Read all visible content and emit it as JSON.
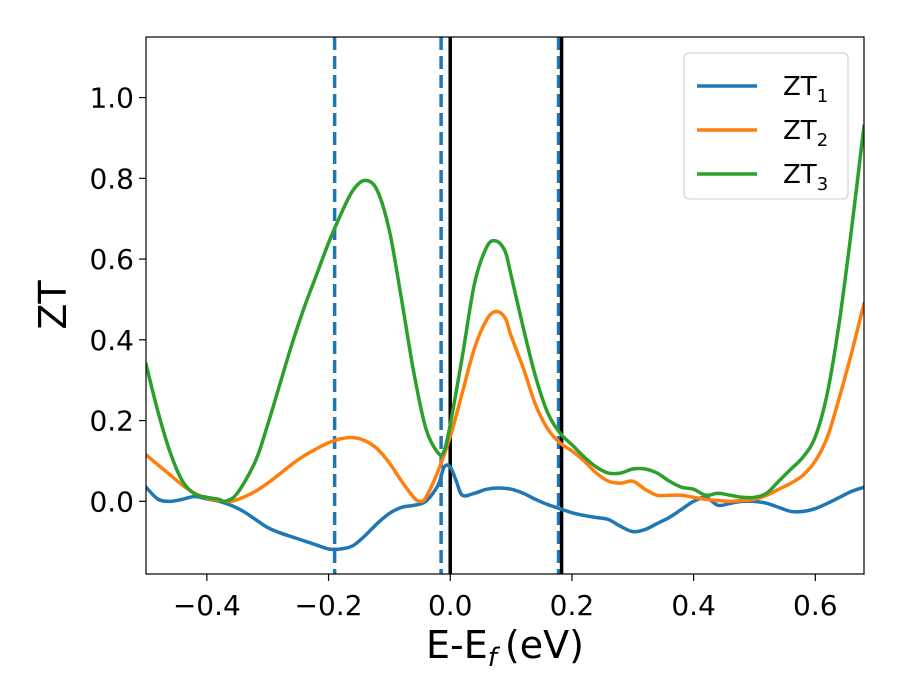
{
  "chart_data": {
    "type": "line",
    "xlabel": "E-E",
    "xlabel_sub": "f",
    "xlabel_unit": "(eV)",
    "ylabel": "ZT",
    "xlim": [
      -0.5,
      0.68
    ],
    "ylim": [
      -0.18,
      1.15
    ],
    "xticks": [
      -0.4,
      -0.2,
      0.0,
      0.2,
      0.4,
      0.6
    ],
    "xtick_labels": [
      "−0.4",
      "−0.2",
      "0.0",
      "0.2",
      "0.4",
      "0.6"
    ],
    "yticks": [
      0.0,
      0.2,
      0.4,
      0.6,
      0.8,
      1.0
    ],
    "ytick_labels": [
      "0.0",
      "0.2",
      "0.4",
      "0.6",
      "0.8",
      "1.0"
    ],
    "legend_position": "top-right",
    "grid": false,
    "vlines": [
      {
        "x": -0.19,
        "style": "dashed",
        "color": "#1f77b4"
      },
      {
        "x": -0.015,
        "style": "dashed",
        "color": "#1f77b4"
      },
      {
        "x": 0.178,
        "style": "dashed",
        "color": "#1f77b4"
      },
      {
        "x": 0.0,
        "style": "solid",
        "color": "#000000"
      },
      {
        "x": 0.183,
        "style": "solid",
        "color": "#000000"
      }
    ],
    "series": [
      {
        "name": "ZT",
        "sub": "1",
        "color": "#1f77b4",
        "points": [
          [
            -0.5,
            0.035
          ],
          [
            -0.48,
            0.005
          ],
          [
            -0.46,
            0.0
          ],
          [
            -0.44,
            0.005
          ],
          [
            -0.42,
            0.012
          ],
          [
            -0.4,
            0.006
          ],
          [
            -0.38,
            0.0
          ],
          [
            -0.36,
            -0.01
          ],
          [
            -0.34,
            -0.025
          ],
          [
            -0.32,
            -0.045
          ],
          [
            -0.3,
            -0.065
          ],
          [
            -0.28,
            -0.078
          ],
          [
            -0.26,
            -0.088
          ],
          [
            -0.24,
            -0.098
          ],
          [
            -0.22,
            -0.108
          ],
          [
            -0.2,
            -0.118
          ],
          [
            -0.18,
            -0.118
          ],
          [
            -0.16,
            -0.11
          ],
          [
            -0.14,
            -0.085
          ],
          [
            -0.12,
            -0.055
          ],
          [
            -0.1,
            -0.03
          ],
          [
            -0.08,
            -0.015
          ],
          [
            -0.06,
            -0.01
          ],
          [
            -0.04,
            0.0
          ],
          [
            -0.02,
            0.04
          ],
          [
            -0.01,
            0.085
          ],
          [
            0.0,
            0.085
          ],
          [
            0.01,
            0.05
          ],
          [
            0.02,
            0.015
          ],
          [
            0.04,
            0.02
          ],
          [
            0.06,
            0.03
          ],
          [
            0.08,
            0.033
          ],
          [
            0.1,
            0.03
          ],
          [
            0.12,
            0.02
          ],
          [
            0.14,
            0.005
          ],
          [
            0.16,
            -0.008
          ],
          [
            0.18,
            -0.018
          ],
          [
            0.2,
            -0.028
          ],
          [
            0.22,
            -0.035
          ],
          [
            0.24,
            -0.04
          ],
          [
            0.26,
            -0.045
          ],
          [
            0.28,
            -0.062
          ],
          [
            0.3,
            -0.075
          ],
          [
            0.32,
            -0.07
          ],
          [
            0.34,
            -0.055
          ],
          [
            0.36,
            -0.04
          ],
          [
            0.38,
            -0.02
          ],
          [
            0.4,
            0.0
          ],
          [
            0.42,
            0.01
          ],
          [
            0.44,
            -0.01
          ],
          [
            0.46,
            -0.005
          ],
          [
            0.48,
            0.0
          ],
          [
            0.5,
            0.0
          ],
          [
            0.52,
            -0.005
          ],
          [
            0.54,
            -0.015
          ],
          [
            0.56,
            -0.025
          ],
          [
            0.58,
            -0.025
          ],
          [
            0.6,
            -0.018
          ],
          [
            0.62,
            -0.005
          ],
          [
            0.64,
            0.01
          ],
          [
            0.66,
            0.025
          ],
          [
            0.68,
            0.035
          ]
        ]
      },
      {
        "name": "ZT",
        "sub": "2",
        "color": "#ff7f0e",
        "points": [
          [
            -0.5,
            0.115
          ],
          [
            -0.48,
            0.09
          ],
          [
            -0.46,
            0.065
          ],
          [
            -0.44,
            0.04
          ],
          [
            -0.42,
            0.02
          ],
          [
            -0.4,
            0.008
          ],
          [
            -0.38,
            0.002
          ],
          [
            -0.36,
            0.0
          ],
          [
            -0.34,
            0.01
          ],
          [
            -0.32,
            0.025
          ],
          [
            -0.3,
            0.045
          ],
          [
            -0.28,
            0.068
          ],
          [
            -0.26,
            0.092
          ],
          [
            -0.24,
            0.113
          ],
          [
            -0.22,
            0.13
          ],
          [
            -0.2,
            0.145
          ],
          [
            -0.18,
            0.155
          ],
          [
            -0.16,
            0.158
          ],
          [
            -0.14,
            0.15
          ],
          [
            -0.12,
            0.13
          ],
          [
            -0.1,
            0.095
          ],
          [
            -0.08,
            0.05
          ],
          [
            -0.06,
            0.01
          ],
          [
            -0.05,
            0.0
          ],
          [
            -0.04,
            0.01
          ],
          [
            -0.02,
            0.075
          ],
          [
            0.0,
            0.16
          ],
          [
            0.02,
            0.27
          ],
          [
            0.04,
            0.38
          ],
          [
            0.06,
            0.45
          ],
          [
            0.075,
            0.47
          ],
          [
            0.09,
            0.455
          ],
          [
            0.1,
            0.41
          ],
          [
            0.12,
            0.33
          ],
          [
            0.14,
            0.24
          ],
          [
            0.16,
            0.18
          ],
          [
            0.18,
            0.145
          ],
          [
            0.2,
            0.125
          ],
          [
            0.22,
            0.1
          ],
          [
            0.24,
            0.07
          ],
          [
            0.26,
            0.05
          ],
          [
            0.28,
            0.045
          ],
          [
            0.3,
            0.05
          ],
          [
            0.32,
            0.03
          ],
          [
            0.34,
            0.015
          ],
          [
            0.36,
            0.015
          ],
          [
            0.38,
            0.015
          ],
          [
            0.4,
            0.01
          ],
          [
            0.42,
            0.005
          ],
          [
            0.44,
            0.002
          ],
          [
            0.46,
            0.0
          ],
          [
            0.48,
            0.002
          ],
          [
            0.5,
            0.005
          ],
          [
            0.52,
            0.015
          ],
          [
            0.54,
            0.03
          ],
          [
            0.56,
            0.045
          ],
          [
            0.58,
            0.065
          ],
          [
            0.6,
            0.1
          ],
          [
            0.62,
            0.16
          ],
          [
            0.64,
            0.26
          ],
          [
            0.66,
            0.37
          ],
          [
            0.68,
            0.49
          ]
        ]
      },
      {
        "name": "ZT",
        "sub": "3",
        "color": "#2ca02c",
        "points": [
          [
            -0.5,
            0.34
          ],
          [
            -0.48,
            0.22
          ],
          [
            -0.46,
            0.12
          ],
          [
            -0.44,
            0.05
          ],
          [
            -0.42,
            0.018
          ],
          [
            -0.4,
            0.01
          ],
          [
            -0.38,
            0.005
          ],
          [
            -0.37,
            0.0
          ],
          [
            -0.35,
            0.02
          ],
          [
            -0.32,
            0.1
          ],
          [
            -0.3,
            0.19
          ],
          [
            -0.28,
            0.29
          ],
          [
            -0.26,
            0.39
          ],
          [
            -0.24,
            0.48
          ],
          [
            -0.22,
            0.56
          ],
          [
            -0.2,
            0.64
          ],
          [
            -0.18,
            0.71
          ],
          [
            -0.16,
            0.77
          ],
          [
            -0.14,
            0.795
          ],
          [
            -0.12,
            0.77
          ],
          [
            -0.1,
            0.67
          ],
          [
            -0.08,
            0.5
          ],
          [
            -0.06,
            0.32
          ],
          [
            -0.04,
            0.18
          ],
          [
            -0.02,
            0.12
          ],
          [
            -0.01,
            0.125
          ],
          [
            0.0,
            0.19
          ],
          [
            0.02,
            0.36
          ],
          [
            0.04,
            0.54
          ],
          [
            0.06,
            0.63
          ],
          [
            0.075,
            0.645
          ],
          [
            0.09,
            0.62
          ],
          [
            0.1,
            0.56
          ],
          [
            0.12,
            0.43
          ],
          [
            0.14,
            0.31
          ],
          [
            0.16,
            0.22
          ],
          [
            0.18,
            0.17
          ],
          [
            0.2,
            0.14
          ],
          [
            0.22,
            0.11
          ],
          [
            0.24,
            0.085
          ],
          [
            0.26,
            0.07
          ],
          [
            0.28,
            0.07
          ],
          [
            0.3,
            0.08
          ],
          [
            0.32,
            0.08
          ],
          [
            0.34,
            0.07
          ],
          [
            0.36,
            0.05
          ],
          [
            0.38,
            0.035
          ],
          [
            0.4,
            0.03
          ],
          [
            0.42,
            0.015
          ],
          [
            0.44,
            0.02
          ],
          [
            0.46,
            0.015
          ],
          [
            0.48,
            0.01
          ],
          [
            0.5,
            0.01
          ],
          [
            0.52,
            0.02
          ],
          [
            0.54,
            0.05
          ],
          [
            0.56,
            0.08
          ],
          [
            0.58,
            0.11
          ],
          [
            0.6,
            0.16
          ],
          [
            0.62,
            0.27
          ],
          [
            0.64,
            0.45
          ],
          [
            0.66,
            0.68
          ],
          [
            0.68,
            0.93
          ]
        ]
      }
    ]
  }
}
